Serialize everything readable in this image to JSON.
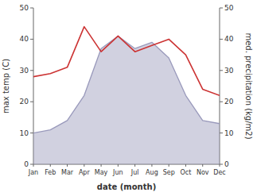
{
  "chart_data": {
    "type": "line",
    "xlabel": "date (month)",
    "ylabel": "max temp (C)",
    "y2label": "med. precipitation (kg/m2)",
    "categories": [
      "Jan",
      "Feb",
      "Mar",
      "Apr",
      "May",
      "Jun",
      "Jul",
      "Aug",
      "Sep",
      "Oct",
      "Nov",
      "Dec"
    ],
    "series": [
      {
        "type": "area",
        "color": "#9999bb",
        "values": [
          10,
          11,
          14,
          22,
          37,
          41,
          37,
          39,
          34,
          22,
          14,
          13
        ]
      },
      {
        "type": "line",
        "color": "#cc3333",
        "axis": "y2",
        "values": [
          28,
          29,
          31,
          44,
          36,
          41,
          36,
          38,
          40,
          35,
          24,
          22
        ]
      }
    ],
    "ylim": [
      0,
      50
    ],
    "yticks": [
      0,
      10,
      20,
      30,
      40,
      50
    ],
    "y2lim": [
      0,
      50
    ],
    "y2ticks": [
      0,
      10,
      20,
      30,
      40,
      50
    ],
    "grid": false
  }
}
